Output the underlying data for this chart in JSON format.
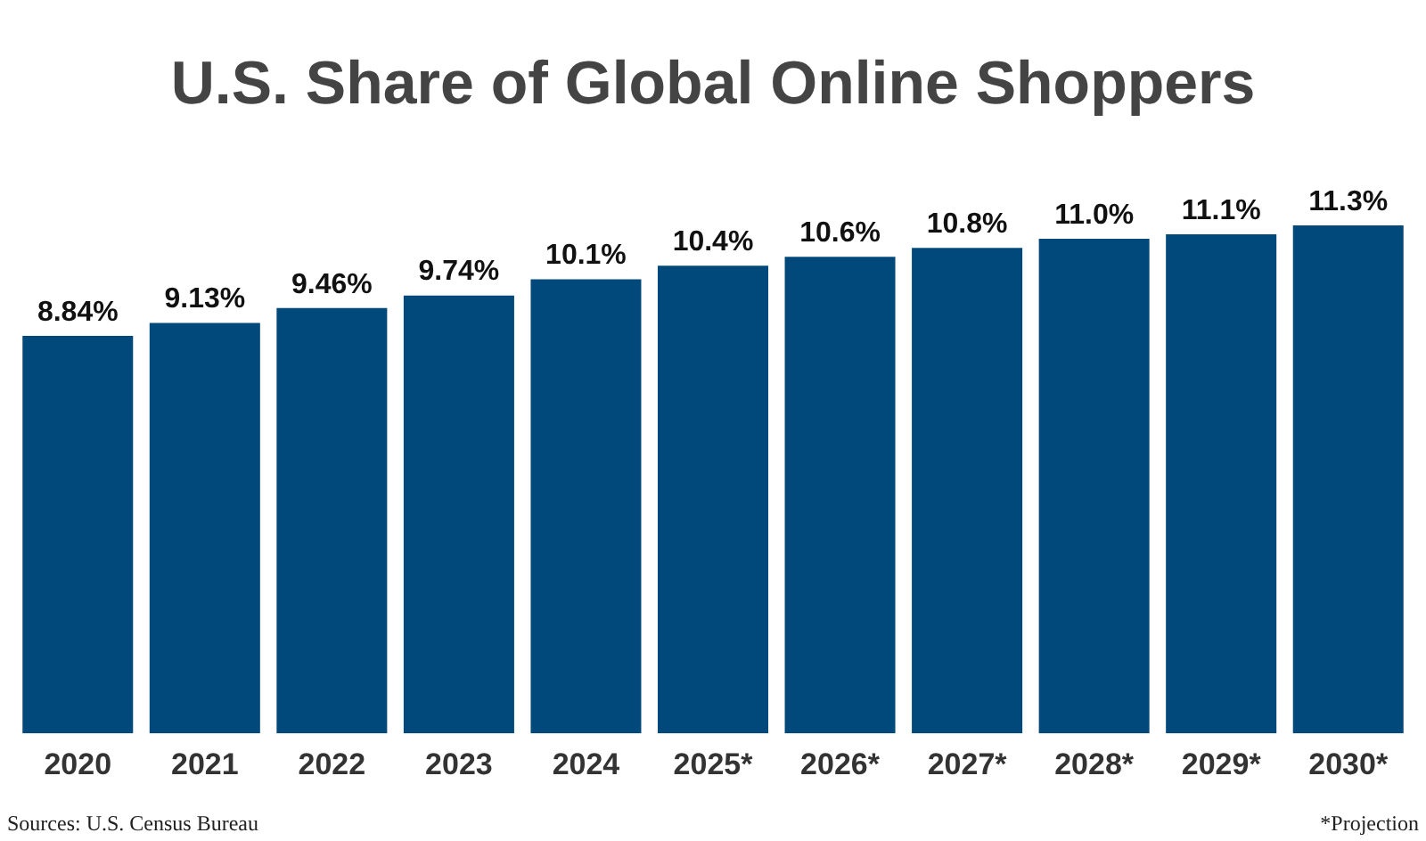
{
  "chart_data": {
    "type": "bar",
    "title": "U.S. Share of Global Online Shoppers",
    "categories": [
      "2020",
      "2021",
      "2022",
      "2023",
      "2024",
      "2025*",
      "2026*",
      "2027*",
      "2028*",
      "2029*",
      "2030*"
    ],
    "values": [
      8.84,
      9.13,
      9.46,
      9.74,
      10.1,
      10.4,
      10.6,
      10.8,
      11.0,
      11.1,
      11.3
    ],
    "value_labels": [
      "8.84%",
      "9.13%",
      "9.46%",
      "9.74%",
      "10.1%",
      "10.4%",
      "10.6%",
      "10.8%",
      "11.0%",
      "11.1%",
      "11.3%"
    ],
    "color": "#00497a",
    "grid": false,
    "legend": false,
    "annotations": [
      "Sources: U.S. Census Bureau",
      "*Projection"
    ]
  }
}
